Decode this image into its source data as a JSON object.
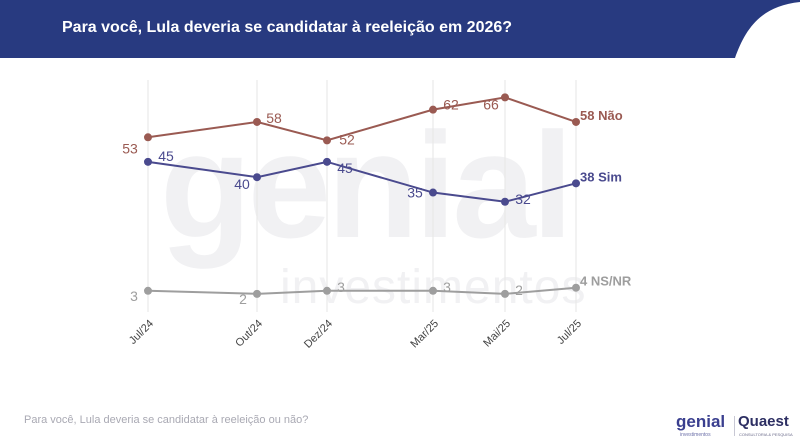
{
  "header": {
    "title": "Para você, Lula deveria se candidatar à reeleição em 2026?",
    "background_color": "#283a80"
  },
  "footer": {
    "question": "Para você, Lula deveria se candidatar à reeleição ou não?"
  },
  "logos": {
    "genial": "genial",
    "genial_sub": "investimentos",
    "quaest": "Quaest",
    "quaest_sub": "CONSULTORIA & PESQUISA"
  },
  "watermark": {
    "big": "genial",
    "small": "investimentos"
  },
  "chart_data": {
    "type": "line",
    "categories": [
      "Jul/24",
      "Out/24",
      "Dez/24",
      "Mar/25",
      "Mai/25",
      "Jul/25"
    ],
    "series": [
      {
        "name": "Não",
        "values": [
          53,
          58,
          52,
          62,
          66,
          58
        ],
        "color": "#9a5a52",
        "end_label": "58 Não"
      },
      {
        "name": "Sim",
        "values": [
          45,
          40,
          45,
          35,
          32,
          38
        ],
        "color": "#4a4a8e",
        "end_label": "38 Sim"
      },
      {
        "name": "NS/NR",
        "values": [
          3,
          2,
          3,
          3,
          2,
          4
        ],
        "color": "#9e9e9e",
        "end_label": "4 NS/NR"
      }
    ],
    "grid": "vertical",
    "legend": "end-of-line labels"
  }
}
